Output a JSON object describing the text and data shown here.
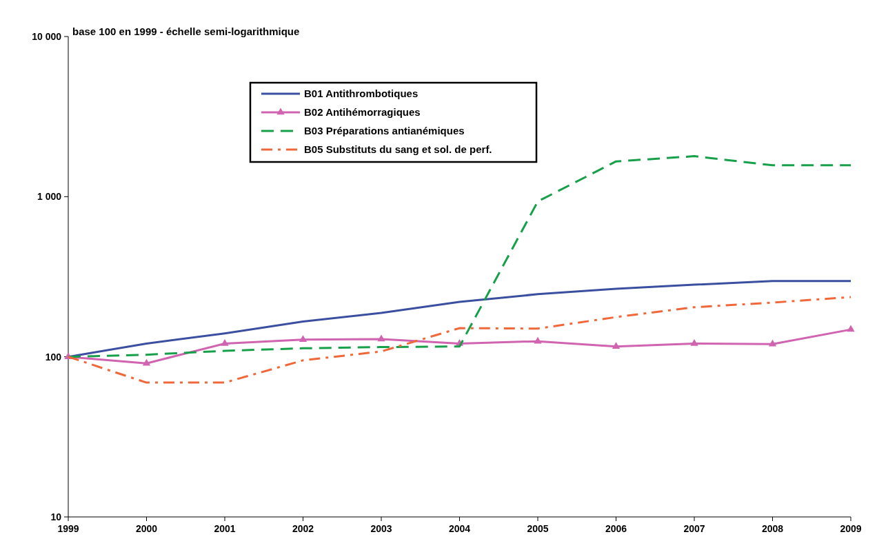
{
  "chart_data": {
    "type": "line",
    "title": "base 100 en 1999 - échelle semi-logarithmique",
    "x": [
      1999,
      2000,
      2001,
      2002,
      2003,
      2004,
      2005,
      2006,
      2007,
      2008,
      2009
    ],
    "xlim": [
      1999,
      2009
    ],
    "xticks": [
      1999,
      2000,
      2001,
      2002,
      2003,
      2004,
      2005,
      2006,
      2007,
      2008,
      2009
    ],
    "log": true,
    "ylim": [
      10,
      10000
    ],
    "yticks": [
      10,
      100,
      {
        "value": 1000,
        "label": "1 000"
      },
      {
        "value": 10000,
        "label": "10 000"
      }
    ],
    "grid": false,
    "legend": "top",
    "series": [
      {
        "name": "B01 Antithrombotiques",
        "color": "#3b4fa0",
        "marker": "none",
        "line_style": "solid",
        "values": [
          100,
          121,
          140,
          166,
          188,
          220,
          246,
          266,
          282,
          297,
          297
        ]
      },
      {
        "name": "B02 Antihémorragiques",
        "color": "#d064b0",
        "marker": "triangle",
        "line_style": "solid",
        "values": [
          100,
          91,
          121,
          128,
          129,
          121,
          125,
          116,
          121,
          120,
          148
        ]
      },
      {
        "name": "B03 Préparations antianémiques",
        "color": "#17a04a",
        "marker": "none",
        "line_style": "dashed",
        "values": [
          100,
          103,
          109,
          113,
          115,
          116,
          933,
          1660,
          1790,
          1570,
          1570
        ]
      },
      {
        "name": "B05 Substituts du sang et sol. de perf.",
        "color": "#f0683a",
        "marker": "none",
        "line_style": "dashdot",
        "values": [
          100,
          69,
          69,
          95,
          108,
          151,
          150,
          177,
          204,
          218,
          236
        ]
      }
    ]
  }
}
